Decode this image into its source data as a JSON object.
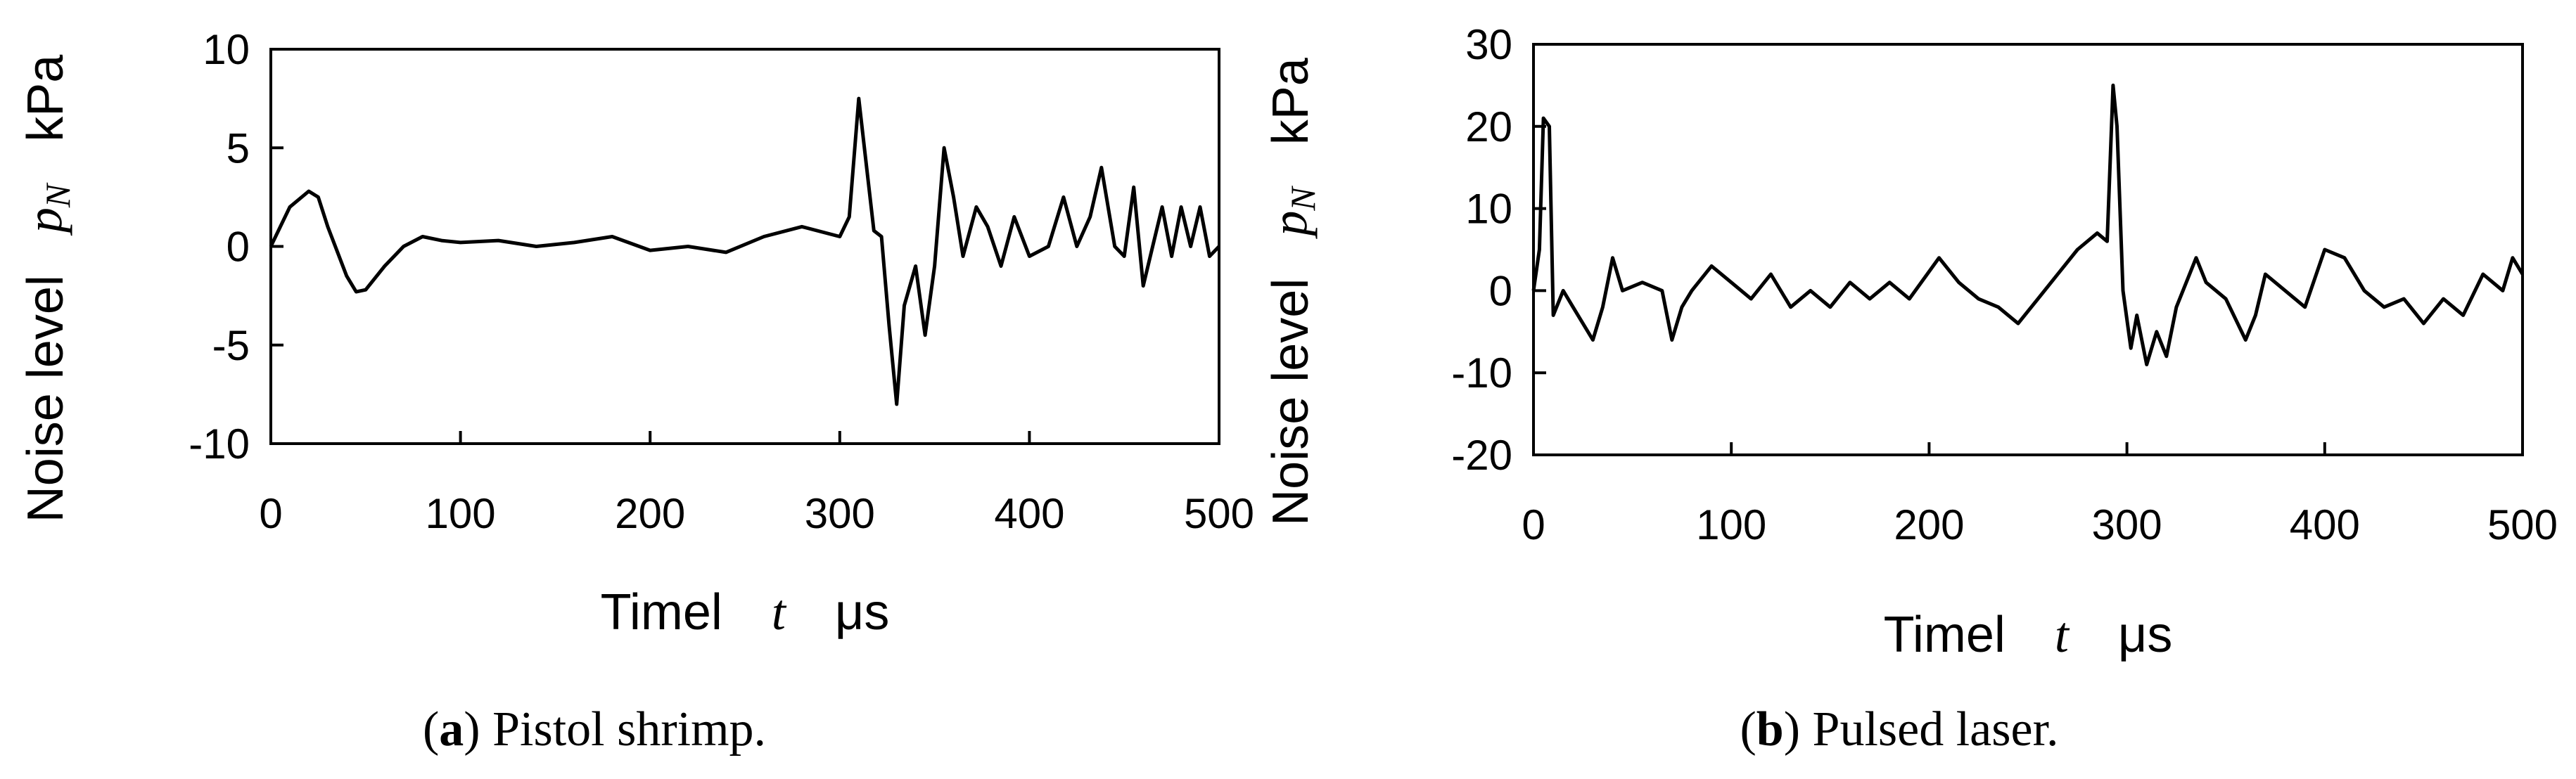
{
  "chart_data": [
    {
      "type": "line",
      "xlabel": [
        "Timel",
        "t",
        "μs"
      ],
      "ylabel": [
        "Noise level",
        "p",
        "N",
        "kPa"
      ],
      "caption": [
        "(",
        "a",
        ") Pistol shrimp."
      ],
      "xlim": [
        0,
        500
      ],
      "ylim": [
        -10,
        10
      ],
      "xticks": [
        0,
        100,
        200,
        300,
        400,
        500
      ],
      "yticks": [
        -10,
        -5,
        0,
        5,
        10
      ],
      "series": [
        {
          "color": "#000000",
          "x": [
            0,
            5,
            10,
            20,
            25,
            30,
            40,
            45,
            50,
            60,
            70,
            80,
            90,
            100,
            120,
            140,
            160,
            180,
            200,
            220,
            240,
            260,
            280,
            300,
            305,
            310,
            313,
            318,
            322,
            326,
            330,
            334,
            340,
            345,
            350,
            355,
            360,
            365,
            372,
            378,
            385,
            392,
            400,
            410,
            418,
            425,
            432,
            438,
            445,
            450,
            455,
            460,
            465,
            470,
            475,
            480,
            485,
            490,
            495,
            500
          ],
          "values": [
            0,
            1,
            2,
            2.8,
            2.5,
            1,
            -1.5,
            -2.3,
            -2.2,
            -1,
            0,
            0.5,
            0.3,
            0.2,
            0.3,
            0,
            0.2,
            0.5,
            -0.2,
            0,
            -0.3,
            0.5,
            1,
            0.5,
            1.5,
            7.5,
            5,
            0.8,
            0.5,
            -4,
            -8,
            -3,
            -1,
            -4.5,
            -1,
            5,
            2.5,
            -0.5,
            2,
            1,
            -1,
            1.5,
            -0.5,
            0,
            2.5,
            0,
            1.5,
            4,
            0,
            -0.5,
            3,
            -2,
            0,
            2,
            -0.5,
            2,
            0,
            2,
            -0.5,
            0
          ]
        }
      ]
    },
    {
      "type": "line",
      "xlabel": [
        "Timel",
        "t",
        "μs"
      ],
      "ylabel": [
        "Noise level",
        "p",
        "N",
        "kPa"
      ],
      "caption": [
        "(",
        "b",
        ") Pulsed laser."
      ],
      "xlim": [
        0,
        500
      ],
      "ylim": [
        -20,
        30
      ],
      "xticks": [
        0,
        100,
        200,
        300,
        400,
        500
      ],
      "yticks": [
        -20,
        -10,
        0,
        10,
        20,
        30
      ],
      "series": [
        {
          "color": "#000000",
          "x": [
            0,
            3,
            5,
            8,
            10,
            15,
            20,
            30,
            35,
            40,
            45,
            55,
            65,
            70,
            75,
            80,
            90,
            100,
            110,
            120,
            130,
            140,
            150,
            160,
            170,
            180,
            190,
            205,
            215,
            225,
            235,
            245,
            255,
            265,
            275,
            285,
            290,
            293,
            295,
            298,
            302,
            305,
            310,
            315,
            320,
            325,
            335,
            340,
            350,
            360,
            365,
            370,
            380,
            390,
            400,
            410,
            420,
            430,
            440,
            450,
            460,
            470,
            480,
            490,
            495,
            500
          ],
          "values": [
            0,
            5,
            21,
            20,
            -3,
            0,
            -2,
            -6,
            -2,
            4,
            0,
            1,
            0,
            -6,
            -2,
            0,
            3,
            1,
            -1,
            2,
            -2,
            0,
            -2,
            1,
            -1,
            1,
            -1,
            4,
            1,
            -1,
            -2,
            -4,
            -1,
            2,
            5,
            7,
            6,
            25,
            20,
            0,
            -7,
            -3,
            -9,
            -5,
            -8,
            -2,
            4,
            1,
            -1,
            -6,
            -3,
            2,
            0,
            -2,
            5,
            4,
            0,
            -2,
            -1,
            -4,
            -1,
            -3,
            2,
            0,
            4,
            2
          ]
        }
      ]
    }
  ]
}
